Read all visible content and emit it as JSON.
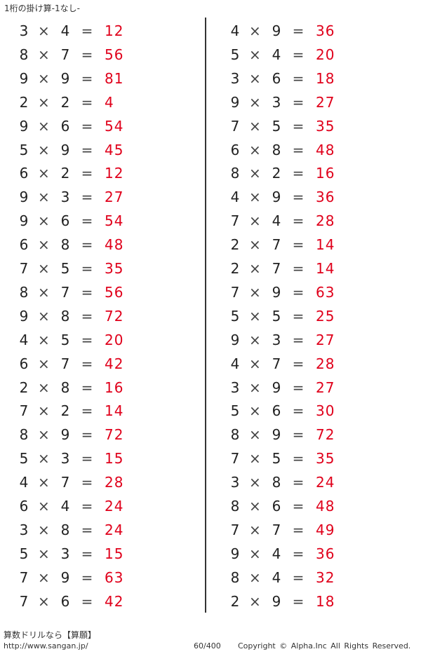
{
  "title": "1桁の掛け算-1なし-",
  "operator": "×",
  "equals": "=",
  "colors": {
    "answer": "#e0001b",
    "text": "#222222"
  },
  "columns": [
    [
      {
        "a": "3",
        "b": "4",
        "answer": "12"
      },
      {
        "a": "8",
        "b": "7",
        "answer": "56"
      },
      {
        "a": "9",
        "b": "9",
        "answer": "81"
      },
      {
        "a": "2",
        "b": "2",
        "answer": "4"
      },
      {
        "a": "9",
        "b": "6",
        "answer": "54"
      },
      {
        "a": "5",
        "b": "9",
        "answer": "45"
      },
      {
        "a": "6",
        "b": "2",
        "answer": "12"
      },
      {
        "a": "9",
        "b": "3",
        "answer": "27"
      },
      {
        "a": "9",
        "b": "6",
        "answer": "54"
      },
      {
        "a": "6",
        "b": "8",
        "answer": "48"
      },
      {
        "a": "7",
        "b": "5",
        "answer": "35"
      },
      {
        "a": "8",
        "b": "7",
        "answer": "56"
      },
      {
        "a": "9",
        "b": "8",
        "answer": "72"
      },
      {
        "a": "4",
        "b": "5",
        "answer": "20"
      },
      {
        "a": "6",
        "b": "7",
        "answer": "42"
      },
      {
        "a": "2",
        "b": "8",
        "answer": "16"
      },
      {
        "a": "7",
        "b": "2",
        "answer": "14"
      },
      {
        "a": "8",
        "b": "9",
        "answer": "72"
      },
      {
        "a": "5",
        "b": "3",
        "answer": "15"
      },
      {
        "a": "4",
        "b": "7",
        "answer": "28"
      },
      {
        "a": "6",
        "b": "4",
        "answer": "24"
      },
      {
        "a": "3",
        "b": "8",
        "answer": "24"
      },
      {
        "a": "5",
        "b": "3",
        "answer": "15"
      },
      {
        "a": "7",
        "b": "9",
        "answer": "63"
      },
      {
        "a": "7",
        "b": "6",
        "answer": "42"
      }
    ],
    [
      {
        "a": "4",
        "b": "9",
        "answer": "36"
      },
      {
        "a": "5",
        "b": "4",
        "answer": "20"
      },
      {
        "a": "3",
        "b": "6",
        "answer": "18"
      },
      {
        "a": "9",
        "b": "3",
        "answer": "27"
      },
      {
        "a": "7",
        "b": "5",
        "answer": "35"
      },
      {
        "a": "6",
        "b": "8",
        "answer": "48"
      },
      {
        "a": "8",
        "b": "2",
        "answer": "16"
      },
      {
        "a": "4",
        "b": "9",
        "answer": "36"
      },
      {
        "a": "7",
        "b": "4",
        "answer": "28"
      },
      {
        "a": "2",
        "b": "7",
        "answer": "14"
      },
      {
        "a": "2",
        "b": "7",
        "answer": "14"
      },
      {
        "a": "7",
        "b": "9",
        "answer": "63"
      },
      {
        "a": "5",
        "b": "5",
        "answer": "25"
      },
      {
        "a": "9",
        "b": "3",
        "answer": "27"
      },
      {
        "a": "4",
        "b": "7",
        "answer": "28"
      },
      {
        "a": "3",
        "b": "9",
        "answer": "27"
      },
      {
        "a": "5",
        "b": "6",
        "answer": "30"
      },
      {
        "a": "8",
        "b": "9",
        "answer": "72"
      },
      {
        "a": "7",
        "b": "5",
        "answer": "35"
      },
      {
        "a": "3",
        "b": "8",
        "answer": "24"
      },
      {
        "a": "8",
        "b": "6",
        "answer": "48"
      },
      {
        "a": "7",
        "b": "7",
        "answer": "49"
      },
      {
        "a": "9",
        "b": "4",
        "answer": "36"
      },
      {
        "a": "8",
        "b": "4",
        "answer": "32"
      },
      {
        "a": "2",
        "b": "9",
        "answer": "18"
      }
    ]
  ],
  "footer": {
    "brand": "算数ドリルなら【算願】",
    "url": "http://www.sangan.jp/",
    "page": "60/400",
    "copyright": "Copyright © Alpha.Inc All Rights Reserved."
  }
}
